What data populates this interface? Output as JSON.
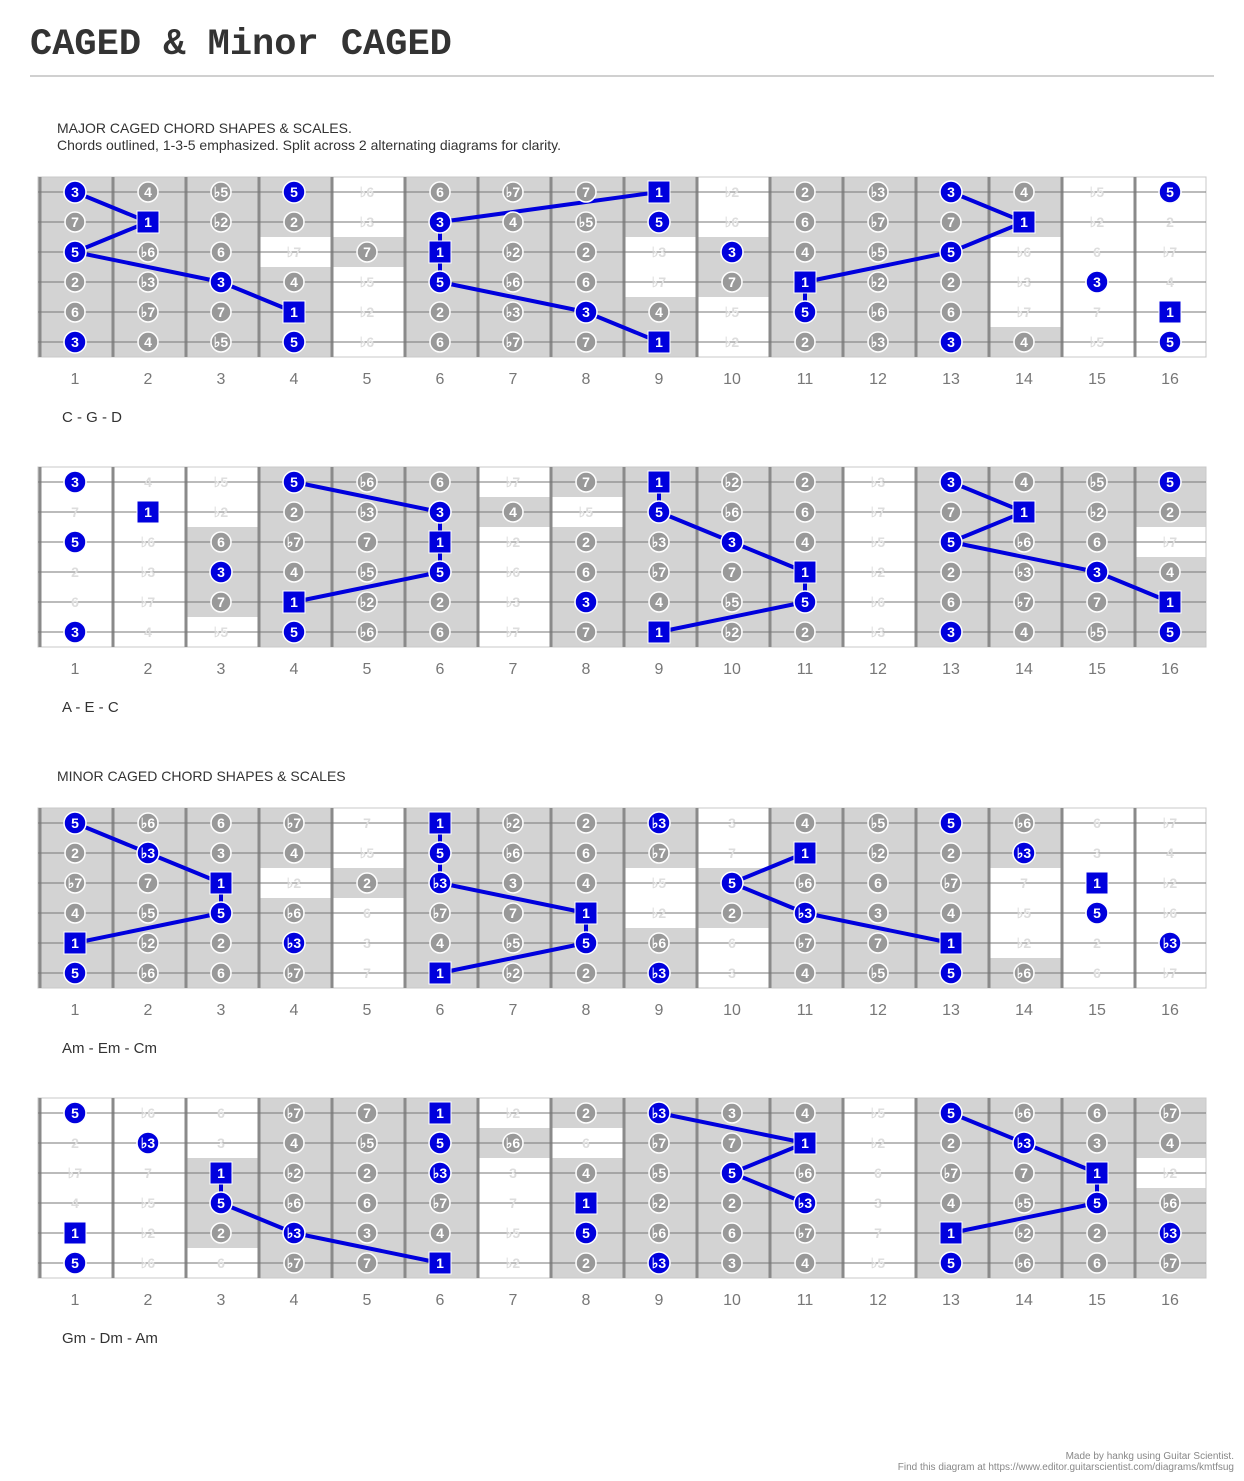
{
  "title": "CAGED & Minor CAGED",
  "sections": [
    {
      "line1": "MAJOR CAGED CHORD SHAPES & SCALES.",
      "line2": "Chords outlined, 1-3-5 emphasized. Split across 2 alternating diagrams for clarity."
    },
    {
      "line1": "MINOR CAGED CHORD SHAPES & SCALES",
      "line2": ""
    }
  ],
  "fret_numbers": [
    "1",
    "2",
    "3",
    "4",
    "5",
    "6",
    "7",
    "8",
    "9",
    "10",
    "11",
    "12",
    "13",
    "14",
    "15",
    "16"
  ],
  "colors": {
    "chord_tone": "#0000dd",
    "scale_tone": "#999999",
    "ghost_tone": "#dddddd",
    "highlight": "#d3d3d3",
    "line": "#0000dd"
  },
  "diagrams": [
    {
      "label": "C - G - D",
      "strings": [
        [
          "3",
          "4",
          "b5",
          "5",
          "b6",
          "6",
          "b7",
          "7",
          "1",
          "b2",
          "2",
          "b3",
          "3",
          "4",
          "b5",
          "5"
        ],
        [
          "7",
          "1",
          "b2",
          "2",
          "b3",
          "3",
          "4",
          "b5",
          "5",
          "b6",
          "6",
          "b7",
          "7",
          "1",
          "b2",
          "2"
        ],
        [
          "5",
          "b6",
          "6",
          "b7",
          "7",
          "1",
          "b2",
          "2",
          "b3",
          "3",
          "4",
          "b5",
          "5",
          "b6",
          "6",
          "b7"
        ],
        [
          "2",
          "b3",
          "3",
          "4",
          "b5",
          "5",
          "b6",
          "6",
          "b7",
          "7",
          "1",
          "b2",
          "2",
          "b3",
          "3",
          "4"
        ],
        [
          "6",
          "b7",
          "7",
          "1",
          "b2",
          "2",
          "b3",
          "3",
          "4",
          "b5",
          "5",
          "b6",
          "6",
          "b7",
          "7",
          "1"
        ],
        [
          "3",
          "4",
          "b5",
          "5",
          "b6",
          "6",
          "b7",
          "7",
          "1",
          "b2",
          "2",
          "b3",
          "3",
          "4",
          "b5",
          "5"
        ]
      ],
      "chord_tones": [
        "1",
        "3",
        "5"
      ],
      "highlight": [
        [
          0,
          1,
          2,
          3,
          5,
          6,
          7,
          8,
          10,
          11,
          12,
          13
        ],
        [
          0,
          1,
          2,
          3,
          5,
          6,
          7,
          8,
          10,
          11,
          12,
          13
        ],
        [
          0,
          1,
          2,
          4,
          5,
          6,
          7,
          9,
          10,
          11,
          12
        ],
        [
          0,
          1,
          2,
          3,
          5,
          6,
          7,
          9,
          10,
          11,
          12
        ],
        [
          0,
          1,
          2,
          3,
          5,
          6,
          7,
          8,
          10,
          11,
          12
        ],
        [
          0,
          1,
          2,
          3,
          5,
          6,
          7,
          8,
          10,
          11,
          12,
          13
        ]
      ],
      "chord_lines": [
        [
          [
            0,
            0
          ],
          [
            1,
            1
          ],
          [
            2,
            0
          ],
          [
            3,
            2
          ],
          [
            4,
            3
          ]
        ],
        [
          [
            0,
            8
          ],
          [
            1,
            5
          ],
          [
            2,
            5
          ],
          [
            3,
            5
          ],
          [
            4,
            7
          ],
          [
            5,
            8
          ]
        ],
        [
          [
            0,
            12
          ],
          [
            1,
            13
          ],
          [
            2,
            12
          ],
          [
            3,
            10
          ],
          [
            4,
            10
          ]
        ]
      ]
    },
    {
      "label": "A - E - C",
      "strings": [
        [
          "3",
          "4",
          "b5",
          "5",
          "b6",
          "6",
          "b7",
          "7",
          "1",
          "b2",
          "2",
          "b3",
          "3",
          "4",
          "b5",
          "5"
        ],
        [
          "7",
          "1",
          "b2",
          "2",
          "b3",
          "3",
          "4",
          "b5",
          "5",
          "b6",
          "6",
          "b7",
          "7",
          "1",
          "b2",
          "2"
        ],
        [
          "5",
          "b6",
          "6",
          "b7",
          "7",
          "1",
          "b2",
          "2",
          "b3",
          "3",
          "4",
          "b5",
          "5",
          "b6",
          "6",
          "b7"
        ],
        [
          "2",
          "b3",
          "3",
          "4",
          "b5",
          "5",
          "b6",
          "6",
          "b7",
          "7",
          "1",
          "b2",
          "2",
          "b3",
          "3",
          "4"
        ],
        [
          "6",
          "b7",
          "7",
          "1",
          "b2",
          "2",
          "b3",
          "3",
          "4",
          "b5",
          "5",
          "b6",
          "6",
          "b7",
          "7",
          "1"
        ],
        [
          "3",
          "4",
          "b5",
          "5",
          "b6",
          "6",
          "b7",
          "7",
          "1",
          "b2",
          "2",
          "b3",
          "3",
          "4",
          "b5",
          "5"
        ]
      ],
      "chord_tones": [
        "1",
        "3",
        "5"
      ],
      "highlight": [
        [
          3,
          4,
          5,
          7,
          8,
          9,
          10,
          12,
          13,
          14,
          15
        ],
        [
          3,
          4,
          5,
          6,
          8,
          9,
          10,
          12,
          13,
          14,
          15
        ],
        [
          2,
          3,
          4,
          5,
          7,
          8,
          9,
          10,
          12,
          13,
          14
        ],
        [
          2,
          3,
          4,
          5,
          7,
          8,
          9,
          10,
          12,
          13,
          14,
          15
        ],
        [
          2,
          3,
          4,
          5,
          7,
          8,
          9,
          10,
          12,
          13,
          14,
          15
        ],
        [
          3,
          4,
          5,
          7,
          8,
          9,
          10,
          12,
          13,
          14,
          15
        ]
      ],
      "chord_lines": [
        [
          [
            0,
            3
          ],
          [
            1,
            5
          ],
          [
            2,
            5
          ],
          [
            3,
            5
          ],
          [
            4,
            3
          ]
        ],
        [
          [
            0,
            8
          ],
          [
            1,
            8
          ],
          [
            2,
            9
          ],
          [
            3,
            10
          ],
          [
            4,
            10
          ],
          [
            5,
            8
          ]
        ],
        [
          [
            0,
            12
          ],
          [
            1,
            13
          ],
          [
            2,
            12
          ],
          [
            3,
            14
          ],
          [
            4,
            15
          ]
        ]
      ]
    },
    {
      "label": "Am - Em - Cm",
      "strings": [
        [
          "5",
          "b6",
          "6",
          "b7",
          "7",
          "1",
          "b2",
          "2",
          "b3",
          "3",
          "4",
          "b5",
          "5",
          "b6",
          "6",
          "b7"
        ],
        [
          "2",
          "b3",
          "3",
          "4",
          "b5",
          "5",
          "b6",
          "6",
          "b7",
          "7",
          "1",
          "b2",
          "2",
          "b3",
          "3",
          "4"
        ],
        [
          "b7",
          "7",
          "1",
          "b2",
          "2",
          "b3",
          "3",
          "4",
          "b5",
          "5",
          "b6",
          "6",
          "b7",
          "7",
          "1",
          "b2"
        ],
        [
          "4",
          "b5",
          "5",
          "b6",
          "6",
          "b7",
          "7",
          "1",
          "b2",
          "2",
          "b3",
          "3",
          "4",
          "b5",
          "5",
          "b6"
        ],
        [
          "1",
          "b2",
          "2",
          "b3",
          "3",
          "4",
          "b5",
          "5",
          "b6",
          "6",
          "b7",
          "7",
          "1",
          "b2",
          "2",
          "b3"
        ],
        [
          "5",
          "b6",
          "6",
          "b7",
          "7",
          "1",
          "b2",
          "2",
          "b3",
          "3",
          "4",
          "b5",
          "5",
          "b6",
          "6",
          "b7"
        ]
      ],
      "chord_tones": [
        "1",
        "b3",
        "5"
      ],
      "highlight": [
        [
          0,
          1,
          2,
          3,
          5,
          6,
          7,
          8,
          10,
          11,
          12,
          13
        ],
        [
          0,
          1,
          2,
          3,
          5,
          6,
          7,
          8,
          10,
          11,
          12,
          13
        ],
        [
          0,
          1,
          2,
          4,
          5,
          6,
          7,
          9,
          10,
          11,
          12
        ],
        [
          0,
          1,
          2,
          3,
          5,
          6,
          7,
          9,
          10,
          11,
          12
        ],
        [
          0,
          1,
          2,
          3,
          5,
          6,
          7,
          8,
          10,
          11,
          12
        ],
        [
          0,
          1,
          2,
          3,
          5,
          6,
          7,
          8,
          10,
          11,
          12,
          13
        ]
      ],
      "chord_lines": [
        [
          [
            0,
            0
          ],
          [
            1,
            1
          ],
          [
            2,
            2
          ],
          [
            3,
            2
          ],
          [
            4,
            0
          ]
        ],
        [
          [
            0,
            5
          ],
          [
            1,
            5
          ],
          [
            2,
            5
          ],
          [
            3,
            7
          ],
          [
            4,
            7
          ],
          [
            5,
            5
          ]
        ],
        [
          [
            1,
            10
          ],
          [
            2,
            9
          ],
          [
            3,
            10
          ],
          [
            4,
            12
          ]
        ]
      ]
    },
    {
      "label": "Gm - Dm - Am",
      "strings": [
        [
          "5",
          "b6",
          "6",
          "b7",
          "7",
          "1",
          "b2",
          "2",
          "b3",
          "3",
          "4",
          "b5",
          "5",
          "b6",
          "6",
          "b7"
        ],
        [
          "2",
          "b3",
          "3",
          "4",
          "b5",
          "5",
          "b6",
          "6",
          "b7",
          "7",
          "1",
          "b2",
          "2",
          "b3",
          "3",
          "4"
        ],
        [
          "b7",
          "7",
          "1",
          "b2",
          "2",
          "b3",
          "3",
          "4",
          "b5",
          "5",
          "b6",
          "6",
          "b7",
          "7",
          "1",
          "b2"
        ],
        [
          "4",
          "b5",
          "5",
          "b6",
          "6",
          "b7",
          "7",
          "1",
          "b2",
          "2",
          "b3",
          "3",
          "4",
          "b5",
          "5",
          "b6"
        ],
        [
          "1",
          "b2",
          "2",
          "b3",
          "3",
          "4",
          "b5",
          "5",
          "b6",
          "6",
          "b7",
          "7",
          "1",
          "b2",
          "2",
          "b3"
        ],
        [
          "5",
          "b6",
          "6",
          "b7",
          "7",
          "1",
          "b2",
          "2",
          "b3",
          "3",
          "4",
          "b5",
          "5",
          "b6",
          "6",
          "b7"
        ]
      ],
      "chord_tones": [
        "1",
        "b3",
        "5"
      ],
      "highlight": [
        [
          3,
          4,
          5,
          7,
          8,
          9,
          10,
          12,
          13,
          14,
          15
        ],
        [
          3,
          4,
          5,
          6,
          8,
          9,
          10,
          12,
          13,
          14,
          15
        ],
        [
          2,
          3,
          4,
          5,
          7,
          8,
          9,
          10,
          12,
          13,
          14
        ],
        [
          2,
          3,
          4,
          5,
          7,
          8,
          9,
          10,
          12,
          13,
          14,
          15
        ],
        [
          2,
          3,
          4,
          5,
          7,
          8,
          9,
          10,
          12,
          13,
          14,
          15
        ],
        [
          3,
          4,
          5,
          7,
          8,
          9,
          10,
          12,
          13,
          14,
          15
        ]
      ],
      "chord_lines": [
        [
          [
            2,
            2
          ],
          [
            3,
            2
          ],
          [
            4,
            3
          ],
          [
            5,
            5
          ]
        ],
        [
          [
            0,
            8
          ],
          [
            1,
            10
          ],
          [
            2,
            9
          ],
          [
            3,
            10
          ]
        ],
        [
          [
            0,
            12
          ],
          [
            1,
            13
          ],
          [
            2,
            14
          ],
          [
            3,
            14
          ],
          [
            4,
            12
          ]
        ]
      ]
    }
  ],
  "credits": {
    "line1": "Made by hankg using Guitar Scientist.",
    "line2": "Find this diagram at https://www.editor.guitarscientist.com/diagrams/kmtfsug"
  }
}
